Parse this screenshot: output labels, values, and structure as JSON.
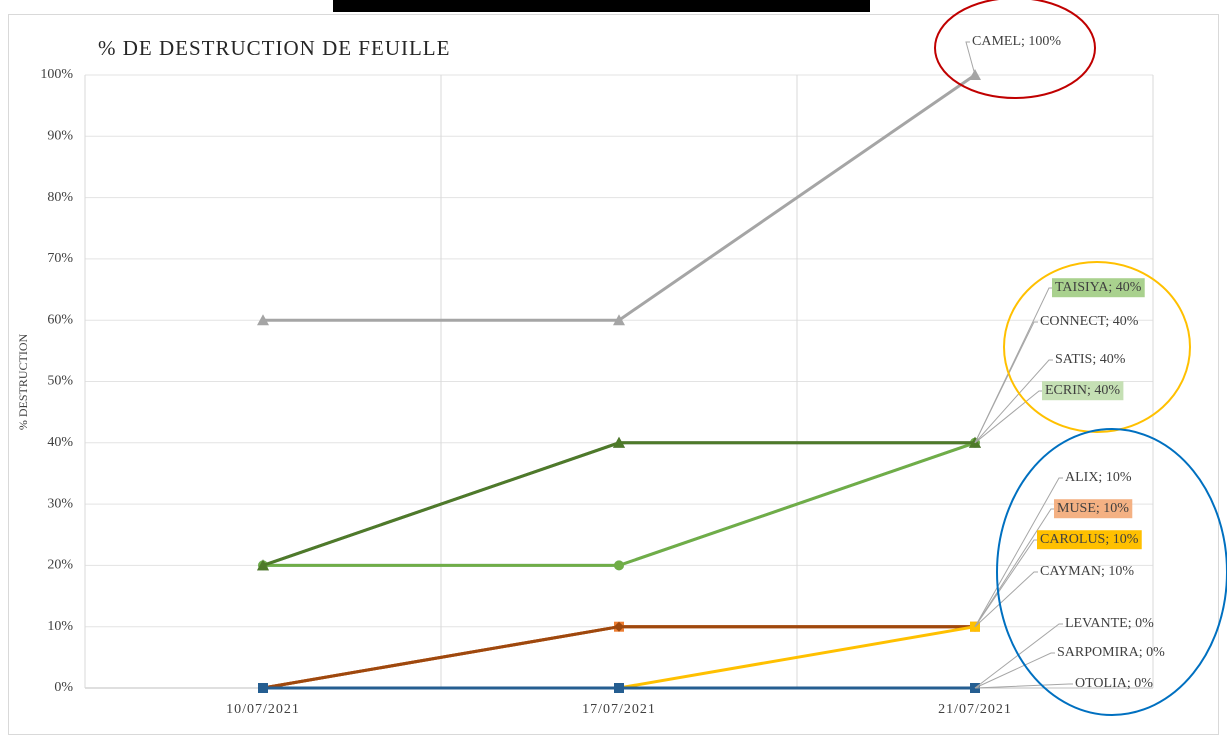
{
  "chart_data": {
    "type": "line",
    "title": "% DE DESTRUCTION DE FEUILLE",
    "y_label": "% DESTRUCTION",
    "categories": [
      "10/07/2021",
      "17/07/2021",
      "21/07/2021"
    ],
    "ylim": [
      0,
      100
    ],
    "yticks": [
      {
        "value": 0,
        "label": "0%"
      },
      {
        "value": 10,
        "label": "10%"
      },
      {
        "value": 20,
        "label": "20%"
      },
      {
        "value": 30,
        "label": "30%"
      },
      {
        "value": 40,
        "label": "40%"
      },
      {
        "value": 50,
        "label": "50%"
      },
      {
        "value": 60,
        "label": "60%"
      },
      {
        "value": 70,
        "label": "70%"
      },
      {
        "value": 80,
        "label": "80%"
      },
      {
        "value": 90,
        "label": "90%"
      },
      {
        "value": 100,
        "label": "100%"
      }
    ],
    "grid": true,
    "series": [
      {
        "name": "CONNECT",
        "color": "#7f7f7f",
        "marker": "triangle",
        "values": [
          20,
          40,
          40
        ],
        "value_labels": [
          null,
          null,
          "CONNECT; 40%"
        ]
      },
      {
        "name": "SATIS",
        "color": "#9dc3e6",
        "marker": "circle",
        "values": [
          20,
          20,
          40
        ],
        "value_labels": [
          null,
          null,
          "SATIS; 40%"
        ]
      },
      {
        "name": "ECRIN",
        "color": "#70ad47",
        "marker": "circle",
        "values": [
          20,
          20,
          40
        ],
        "value_labels": [
          null,
          null,
          "ECRIN; 40%"
        ],
        "label_bg": "#c5e0b4"
      },
      {
        "name": "TAISIYA",
        "color": "#4e7a2a",
        "marker": "triangle",
        "values": [
          20,
          40,
          40
        ],
        "value_labels": [
          null,
          null,
          "TAISIYA; 40%"
        ],
        "label_bg": "#a9d18e"
      },
      {
        "name": "CAMEL",
        "color": "#a5a5a5",
        "marker": "triangle",
        "values": [
          60,
          60,
          100
        ],
        "value_labels": [
          null,
          null,
          "CAMEL; 100%"
        ]
      },
      {
        "name": "CAYMAN",
        "color": "#843c0c",
        "marker": "diamond",
        "values": [
          0,
          10,
          10
        ],
        "value_labels": [
          null,
          null,
          "CAYMAN; 10%"
        ]
      },
      {
        "name": "MUSE",
        "color": "#ed7d31",
        "marker": "square",
        "values": [
          0,
          10,
          10
        ],
        "value_labels": [
          null,
          null,
          "MUSE; 10%"
        ],
        "label_bg": "#f4b183"
      },
      {
        "name": "ALIX",
        "color": "#9e480e",
        "marker": "diamond",
        "values": [
          0,
          10,
          10
        ],
        "value_labels": [
          null,
          null,
          "ALIX; 10%"
        ]
      },
      {
        "name": "CAROLUS",
        "color": "#ffc000",
        "marker": "square",
        "values": [
          0,
          0,
          10
        ],
        "value_labels": [
          null,
          null,
          "CAROLUS; 10%"
        ],
        "label_bg": "#ffc000"
      },
      {
        "name": "LEVANTE",
        "color": "#255e91",
        "marker": "square",
        "values": [
          0,
          0,
          0
        ],
        "value_labels": [
          null,
          null,
          "LEVANTE; 0%"
        ]
      },
      {
        "name": "SARPOMIRA",
        "color": "#255e91",
        "marker": "square",
        "values": [
          0,
          0,
          0
        ],
        "value_labels": [
          null,
          null,
          "SARPOMIRA; 0%"
        ]
      },
      {
        "name": "OTOLIA",
        "color": "#255e91",
        "marker": "square",
        "values": [
          0,
          0,
          0
        ],
        "value_labels": [
          null,
          null,
          "OTOLIA; 0%"
        ]
      }
    ]
  }
}
